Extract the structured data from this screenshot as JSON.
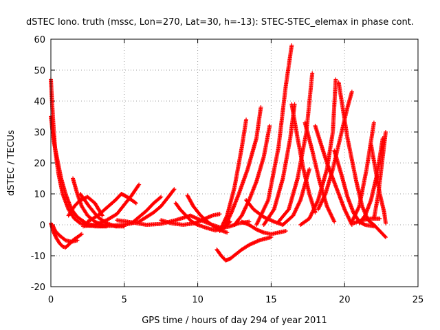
{
  "chart_data": {
    "type": "scatter",
    "title": "dSTEC Iono. truth (mssc, Lon=270, Lat=30, h=-13): STEC-STEC_elemax in phase cont.",
    "xlabel": "GPS time / hours of day 294 of year 2011",
    "ylabel": "dSTEC  / TECUs",
    "xlim": [
      0,
      25
    ],
    "ylim": [
      -20,
      60
    ],
    "x_ticks": [
      "0",
      "5",
      "10",
      "15",
      "20",
      "25"
    ],
    "y_ticks": [
      "-20",
      "-10",
      "0",
      "10",
      "20",
      "30",
      "40",
      "50",
      "60"
    ],
    "grid": true,
    "marker": "+",
    "color": "#ff0000",
    "series": [
      {
        "x": [
          0.0,
          0.1,
          0.2,
          0.3,
          0.5,
          0.8,
          1.2,
          1.6,
          2.0,
          2.6,
          3.2,
          3.8
        ],
        "y": [
          47,
          38,
          30,
          24,
          17,
          10,
          5,
          2,
          0.5,
          -0.3,
          -0.5,
          -0.5
        ]
      },
      {
        "x": [
          0.0,
          0.2,
          0.4,
          0.7,
          1.0,
          1.4,
          1.8,
          2.4,
          3.0
        ],
        "y": [
          35,
          27,
          22,
          15,
          10,
          5,
          2.5,
          0.5,
          -0.3
        ]
      },
      {
        "x": [
          0.0,
          0.2,
          0.4,
          0.6,
          0.8,
          1.0,
          1.2,
          1.5,
          1.8,
          2.1
        ],
        "y": [
          0.5,
          -2.5,
          -4.5,
          -6,
          -7,
          -7.3,
          -6.5,
          -5,
          -4,
          -3
        ]
      },
      {
        "x": [
          0.1,
          0.3,
          0.6,
          1.0,
          1.4,
          1.8
        ],
        "y": [
          0,
          -2,
          -3.5,
          -5,
          -5.5,
          -5
        ]
      },
      {
        "x": [
          1.5,
          1.8,
          2.1,
          2.5,
          3.0,
          3.5,
          4.0,
          4.5
        ],
        "y": [
          15,
          10,
          6,
          3,
          1,
          0,
          -0.3,
          -0.3
        ]
      },
      {
        "x": [
          1.2,
          1.6,
          2.0,
          2.5,
          3.0,
          3.5
        ],
        "y": [
          3,
          6,
          8,
          9,
          7,
          3
        ]
      },
      {
        "x": [
          2.0,
          2.6,
          3.2,
          3.8,
          4.4,
          5.0
        ],
        "y": [
          10,
          6,
          2.5,
          0.5,
          -0.5,
          -0.5
        ]
      },
      {
        "x": [
          2.2,
          3.0,
          3.8,
          4.5,
          5.0,
          5.5,
          6.0
        ],
        "y": [
          -0.5,
          0,
          1.5,
          3.5,
          6.5,
          9.5,
          13
        ]
      },
      {
        "x": [
          2.5,
          3.2,
          3.8,
          4.4,
          4.8,
          5.2,
          5.8
        ],
        "y": [
          1,
          3,
          5.5,
          8,
          10,
          9,
          7
        ]
      },
      {
        "x": [
          3.0,
          4.0,
          5.0,
          6.0,
          7.0,
          7.5,
          8.0,
          8.4
        ],
        "y": [
          -0.5,
          -0.3,
          0,
          1,
          4,
          6,
          9,
          11.5
        ]
      },
      {
        "x": [
          4.5,
          5.5,
          6.5,
          7.5,
          8.5,
          9.5
        ],
        "y": [
          1.5,
          0.8,
          0,
          0.3,
          1.5,
          3
        ]
      },
      {
        "x": [
          5.5,
          6.0,
          6.5,
          7.0,
          7.5
        ],
        "y": [
          0.5,
          2.5,
          4.5,
          7,
          9
        ]
      },
      {
        "x": [
          7.5,
          8.2,
          9.0,
          9.8,
          10.5,
          11.0,
          11.5
        ],
        "y": [
          1.5,
          0.5,
          0,
          0.5,
          2,
          3,
          3.5
        ]
      },
      {
        "x": [
          8.5,
          8.8,
          9.2,
          9.6,
          10.0,
          10.6,
          11.2,
          11.8,
          12.2
        ],
        "y": [
          7,
          5,
          3,
          1,
          0,
          -1,
          -1.8,
          -1,
          1
        ]
      },
      {
        "x": [
          9.3,
          9.7,
          10.2,
          10.8,
          11.4,
          12.0
        ],
        "y": [
          9.5,
          6,
          3,
          0.5,
          -1.5,
          -2.5
        ]
      },
      {
        "x": [
          9.5,
          10.2,
          11.0,
          11.6,
          12.2,
          12.8,
          13.5
        ],
        "y": [
          3,
          1.5,
          0,
          -1,
          -0.5,
          0.5,
          1
        ]
      },
      {
        "x": [
          11.3,
          11.6,
          11.9,
          12.2,
          12.6,
          13.0,
          13.5,
          14.2,
          15.0
        ],
        "y": [
          -8,
          -10,
          -11.5,
          -11,
          -9.5,
          -8,
          -6.5,
          -5,
          -4
        ]
      },
      {
        "x": [
          11.5,
          12.0,
          12.5,
          13.0,
          13.3
        ],
        "y": [
          -2,
          3,
          12,
          25,
          34
        ]
      },
      {
        "x": [
          11.8,
          12.3,
          12.8,
          13.4,
          14.0,
          14.3
        ],
        "y": [
          -1,
          4,
          10,
          18,
          28,
          38
        ]
      },
      {
        "x": [
          12.5,
          13.0,
          13.5,
          14.0,
          14.5,
          14.9
        ],
        "y": [
          0,
          3,
          8,
          14,
          22,
          32
        ]
      },
      {
        "x": [
          13.0,
          13.5,
          14.0,
          14.5,
          15.0,
          15.5,
          16.0
        ],
        "y": [
          1,
          0,
          -1.5,
          -2.5,
          -3,
          -2.5,
          -2
        ]
      },
      {
        "x": [
          13.3,
          13.8,
          14.5,
          15.2,
          15.8
        ],
        "y": [
          8,
          5,
          2.5,
          1,
          0
        ]
      },
      {
        "x": [
          14.0,
          14.8,
          15.5,
          16.0,
          16.4
        ],
        "y": [
          0,
          8,
          25,
          45,
          58
        ]
      },
      {
        "x": [
          14.5,
          15.2,
          15.8,
          16.3,
          16.6
        ],
        "y": [
          0,
          5,
          15,
          28,
          39
        ]
      },
      {
        "x": [
          15.5,
          16.2,
          16.8,
          17.4,
          17.8
        ],
        "y": [
          1,
          5,
          15,
          30,
          49
        ]
      },
      {
        "x": [
          15.8,
          16.5,
          17.0,
          17.6
        ],
        "y": [
          0,
          3,
          8,
          18
        ]
      },
      {
        "x": [
          16.4,
          16.8,
          17.2,
          17.6,
          18.0
        ],
        "y": [
          39,
          28,
          18,
          10,
          4
        ]
      },
      {
        "x": [
          17.0,
          17.6,
          18.2,
          18.8,
          19.2,
          19.4
        ],
        "y": [
          0,
          2,
          8,
          18,
          30,
          47
        ]
      },
      {
        "x": [
          17.3,
          17.8,
          18.3,
          18.8,
          19.3
        ],
        "y": [
          33,
          24,
          14,
          6,
          1
        ]
      },
      {
        "x": [
          18.2,
          18.7,
          19.2,
          19.7,
          20.2,
          20.5
        ],
        "y": [
          5,
          10,
          18,
          28,
          38,
          43
        ]
      },
      {
        "x": [
          18.0,
          18.4,
          18.8,
          19.2,
          19.6,
          20.0,
          20.5
        ],
        "y": [
          32,
          26,
          20,
          15,
          10,
          5,
          0
        ]
      },
      {
        "x": [
          19.3,
          19.8,
          20.2,
          20.6,
          21.0,
          21.4,
          22.0
        ],
        "y": [
          24,
          16,
          9,
          4,
          1,
          0,
          -0.5
        ]
      },
      {
        "x": [
          19.6,
          20.2,
          20.8,
          21.2,
          21.6,
          22.0,
          22.4,
          22.8
        ],
        "y": [
          46,
          28,
          14,
          6,
          1.5,
          0,
          -2,
          -4
        ]
      },
      {
        "x": [
          20.5,
          21.0,
          21.5,
          22.0
        ],
        "y": [
          1,
          6,
          18,
          33
        ]
      },
      {
        "x": [
          21.0,
          21.4,
          21.8,
          22.2,
          22.6
        ],
        "y": [
          0.5,
          3,
          8,
          16,
          28
        ]
      },
      {
        "x": [
          21.8,
          22.1,
          22.4,
          22.7,
          22.8
        ],
        "y": [
          26,
          18,
          10,
          4,
          0.5
        ]
      },
      {
        "x": [
          22.0,
          22.3,
          22.6,
          22.8
        ],
        "y": [
          2,
          10,
          22,
          30
        ]
      },
      {
        "x": [
          20.6,
          21.2,
          21.8,
          22.4
        ],
        "y": [
          0.5,
          1.5,
          2,
          2
        ]
      }
    ]
  }
}
